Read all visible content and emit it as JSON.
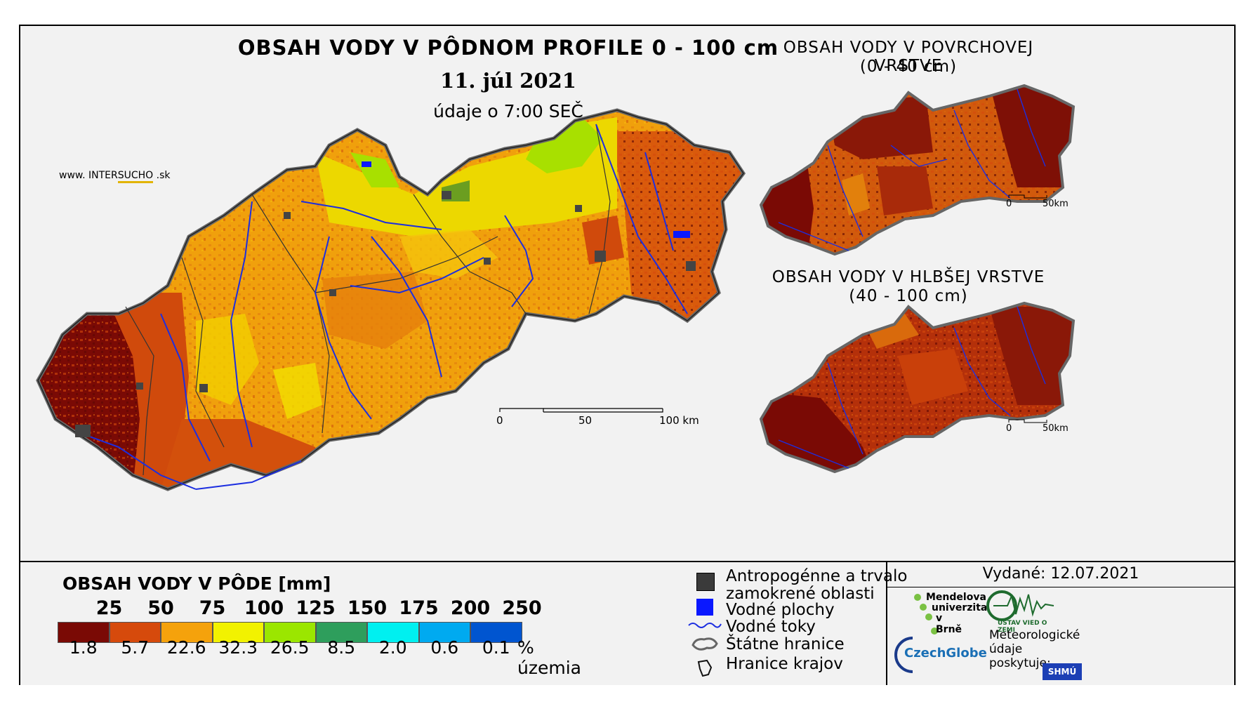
{
  "title": "OBSAH VODY V PÔDNOM PROFILE 0 - 100 cm",
  "date": "11. júl 2021",
  "time_note": "údaje o 7:00 SEČ",
  "intersucho": {
    "prefix": "www. INTER",
    "suffix": "SUCHO",
    "domain": " .sk"
  },
  "main_scale": {
    "zero": "0",
    "mid": "50",
    "end": "100 km"
  },
  "surface": {
    "title": "OBSAH VODY V POVRCHOVEJ VRSTVE",
    "subtitle": "(0 - 40 cm)",
    "scale_zero": "0",
    "scale_end": "50km"
  },
  "deep": {
    "title": "OBSAH VODY V HLBŠEJ VRSTVE",
    "subtitle": "(40 - 100 cm)",
    "scale_zero": "0",
    "scale_end": "50km"
  },
  "legend": {
    "title": "OBSAH VODY V PÔDE [mm]",
    "thresholds": [
      "25",
      "50",
      "75",
      "100",
      "125",
      "150",
      "175",
      "200",
      "250"
    ],
    "percentages": [
      "1.8",
      "5.7",
      "22.6",
      "32.3",
      "26.5",
      "8.5",
      "2.0",
      "0.6",
      "0.1"
    ],
    "pct_unit": "% územia",
    "colors": [
      "#7a0a05",
      "#d64a0c",
      "#f5a20c",
      "#f2f200",
      "#9be600",
      "#2e9e5c",
      "#00f0f0",
      "#00aaf0",
      "#0055d0"
    ]
  },
  "symbols": {
    "anthropogenic": "Antropogénne a trvalo",
    "anthropogenic2": "zamokrené oblasti",
    "water_bodies": "Vodné plochy",
    "water_streams": "Vodné toky",
    "state_borders": "Štátne hranice",
    "region_borders": "Hranice krajov"
  },
  "issued": "Vydané: 12.07.2021",
  "logos": {
    "mendel1": "Mendelova",
    "mendel2": "univerzita",
    "mendel3": "v Brně",
    "ustav": "ÚSTAV VIED O ZEMI",
    "czechglobe": "CzechGlobe",
    "meteo1": "Meteorologické",
    "meteo2": "údaje",
    "meteo3": "poskytuje:",
    "shmu": "SHMÚ"
  }
}
